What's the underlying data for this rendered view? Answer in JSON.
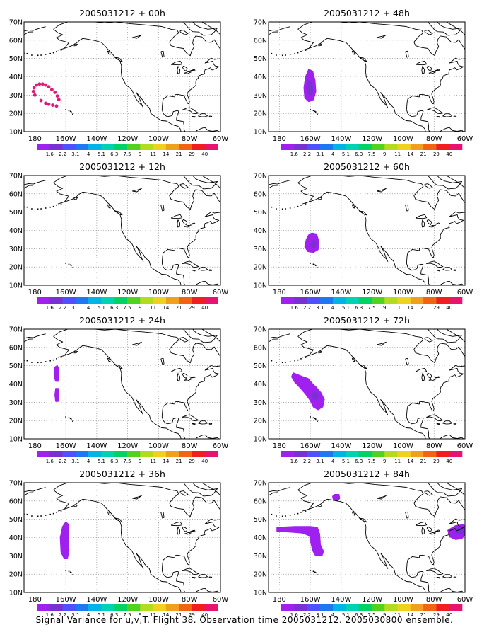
{
  "colorbar": {
    "labels": [
      "1.6",
      "2.2",
      "3.1",
      "4",
      "5.1",
      "6.3",
      "7.5",
      "9",
      "11",
      "14",
      "21",
      "29",
      "40"
    ],
    "colors": [
      "#a020f0",
      "#7832d2",
      "#5050ff",
      "#1e78f0",
      "#00b4e6",
      "#00d2b4",
      "#00d264",
      "#50d21e",
      "#b4dc1e",
      "#f0d21e",
      "#f0a01e",
      "#f06414",
      "#f01e1e",
      "#e6146e"
    ]
  },
  "map": {
    "x_ticks": [
      "180",
      "160W",
      "140W",
      "120W",
      "100W",
      "80W",
      "60W"
    ],
    "y_ticks": [
      "70N",
      "60N",
      "50N",
      "40N",
      "30N",
      "20N",
      "10N"
    ],
    "lon_range": [
      -187,
      -60
    ],
    "lat_range": [
      10,
      70
    ],
    "grid": "dotted"
  },
  "footer": "Signal Variance for u,v,T. Flight 38. Observation time 2005031212. 2005030800 ensemble.",
  "chart_data": [
    {
      "type": "heatmap",
      "title": "2005031212 + 00h",
      "regions": [
        {
          "kind": "dots",
          "color": "#e01878",
          "points": [
            [
              -180,
              30
            ],
            [
              -181,
              32
            ],
            [
              -180.5,
              34
            ],
            [
              -179,
              35.5
            ],
            [
              -177,
              36
            ],
            [
              -175,
              36
            ],
            [
              -173,
              35.5
            ],
            [
              -171,
              34.5
            ],
            [
              -169,
              33
            ],
            [
              -167,
              31.5
            ],
            [
              -165.5,
              29.5
            ],
            [
              -164.5,
              27.5
            ],
            [
              -176,
              27
            ],
            [
              -173,
              25.5
            ],
            [
              -171,
              25
            ],
            [
              -168.5,
              24.5
            ],
            [
              -166,
              24
            ]
          ]
        }
      ]
    },
    {
      "type": "heatmap",
      "title": "2005031212 + 12h",
      "regions": []
    },
    {
      "type": "heatmap",
      "title": "2005031212 + 24h",
      "regions": [
        {
          "kind": "area",
          "color": "#a020f0",
          "points": [
            [
              -167.5,
              49
            ],
            [
              -165.5,
              50
            ],
            [
              -164.5,
              48
            ],
            [
              -164.5,
              44
            ],
            [
              -165,
              41.5
            ],
            [
              -166.5,
              41.5
            ],
            [
              -167.5,
              44
            ]
          ]
        },
        {
          "kind": "area",
          "color": "#a020f0",
          "points": [
            [
              -166.5,
              37.5
            ],
            [
              -165,
              37.5
            ],
            [
              -164.5,
              34
            ],
            [
              -165,
              30.5
            ],
            [
              -166.5,
              30.5
            ],
            [
              -167,
              34
            ]
          ]
        }
      ]
    },
    {
      "type": "heatmap",
      "title": "2005031212 + 36h",
      "regions": [
        {
          "kind": "area",
          "color": "#a020f0",
          "points": [
            [
              -160,
              48.5
            ],
            [
              -158,
              47
            ],
            [
              -158.5,
              40
            ],
            [
              -158,
              33
            ],
            [
              -159,
              28.5
            ],
            [
              -161,
              28.5
            ],
            [
              -163,
              32
            ],
            [
              -163.5,
              40
            ],
            [
              -162,
              46
            ]
          ]
        }
      ]
    },
    {
      "type": "heatmap",
      "title": "2005031212 + 48h",
      "regions": [
        {
          "kind": "area",
          "color": "#a020f0",
          "points": [
            [
              -161,
              44
            ],
            [
              -158.5,
              43
            ],
            [
              -157,
              38
            ],
            [
              -156.5,
              32
            ],
            [
              -158,
              27.5
            ],
            [
              -161,
              26.5
            ],
            [
              -163.5,
              28.5
            ],
            [
              -164,
              34
            ],
            [
              -163,
              40
            ]
          ]
        },
        {
          "kind": "area",
          "color": "#7832d2",
          "points": [
            [
              -161,
              38
            ],
            [
              -159,
              37.5
            ],
            [
              -158.5,
              32
            ],
            [
              -160,
              30
            ],
            [
              -162,
              31
            ],
            [
              -162,
              35
            ]
          ]
        }
      ]
    },
    {
      "type": "heatmap",
      "title": "2005031212 + 60h",
      "regions": [
        {
          "kind": "area",
          "color": "#a020f0",
          "points": [
            [
              -159,
              38.5
            ],
            [
              -156,
              38
            ],
            [
              -154.5,
              34
            ],
            [
              -155,
              29.5
            ],
            [
              -158,
              28
            ],
            [
              -161.5,
              28.5
            ],
            [
              -163.5,
              31
            ],
            [
              -162.5,
              35
            ],
            [
              -161,
              37.5
            ]
          ]
        },
        {
          "kind": "area",
          "color": "#7832d2",
          "points": [
            [
              -158,
              34.5
            ],
            [
              -156.5,
              34
            ],
            [
              -156.5,
              31
            ],
            [
              -158.5,
              30.5
            ],
            [
              -159.5,
              32.5
            ]
          ]
        }
      ]
    },
    {
      "type": "heatmap",
      "title": "2005031212 + 72h",
      "regions": [
        {
          "kind": "area",
          "color": "#a020f0",
          "points": [
            [
              -171,
              46
            ],
            [
              -168,
              45
            ],
            [
              -165,
              44
            ],
            [
              -161.5,
              43
            ],
            [
              -158.5,
              40
            ],
            [
              -156,
              38
            ],
            [
              -153,
              35
            ],
            [
              -151,
              31.5
            ],
            [
              -152,
              27.5
            ],
            [
              -155,
              26
            ],
            [
              -158,
              27.5
            ],
            [
              -160,
              31
            ],
            [
              -163,
              34.5
            ],
            [
              -166,
              37.5
            ],
            [
              -170,
              41
            ],
            [
              -172,
              44
            ]
          ]
        },
        {
          "kind": "area",
          "color": "#7832d2",
          "points": [
            [
              -158,
              35.5
            ],
            [
              -155.5,
              35
            ],
            [
              -155,
              32.5
            ],
            [
              -157,
              31.5
            ],
            [
              -158.5,
              33
            ]
          ]
        }
      ]
    },
    {
      "type": "heatmap",
      "title": "2005031212 + 84h",
      "regions": [
        {
          "kind": "area",
          "color": "#a020f0",
          "points": [
            [
              -144.5,
              63.5
            ],
            [
              -141.5,
              63.5
            ],
            [
              -141,
              61.5
            ],
            [
              -142.5,
              60
            ],
            [
              -145,
              60.5
            ],
            [
              -145.5,
              62.5
            ]
          ]
        },
        {
          "kind": "area",
          "color": "#a020f0",
          "points": [
            [
              -181.5,
              45.5
            ],
            [
              -170,
              46
            ],
            [
              -160,
              46
            ],
            [
              -155.5,
              45.5
            ],
            [
              -154,
              42
            ],
            [
              -153.5,
              36
            ],
            [
              -151.5,
              32.5
            ],
            [
              -152.5,
              30
            ],
            [
              -156.5,
              30
            ],
            [
              -158.5,
              33
            ],
            [
              -159.5,
              37
            ],
            [
              -160.5,
              41
            ],
            [
              -165,
              42.5
            ],
            [
              -172,
              43
            ],
            [
              -181.5,
              43.5
            ]
          ]
        },
        {
          "kind": "area",
          "color": "#a020f0",
          "points": [
            [
              -71,
              44
            ],
            [
              -66,
              46.5
            ],
            [
              -61,
              47
            ],
            [
              -59,
              45.5
            ],
            [
              -59.5,
              42
            ],
            [
              -62,
              39.5
            ],
            [
              -66,
              39
            ],
            [
              -70,
              40.5
            ]
          ]
        },
        {
          "kind": "area",
          "color": "#7832d2",
          "points": [
            [
              -66,
              45
            ],
            [
              -61,
              45.5
            ],
            [
              -60,
              43.5
            ],
            [
              -62.5,
              42
            ],
            [
              -66,
              42.5
            ]
          ]
        }
      ]
    }
  ]
}
